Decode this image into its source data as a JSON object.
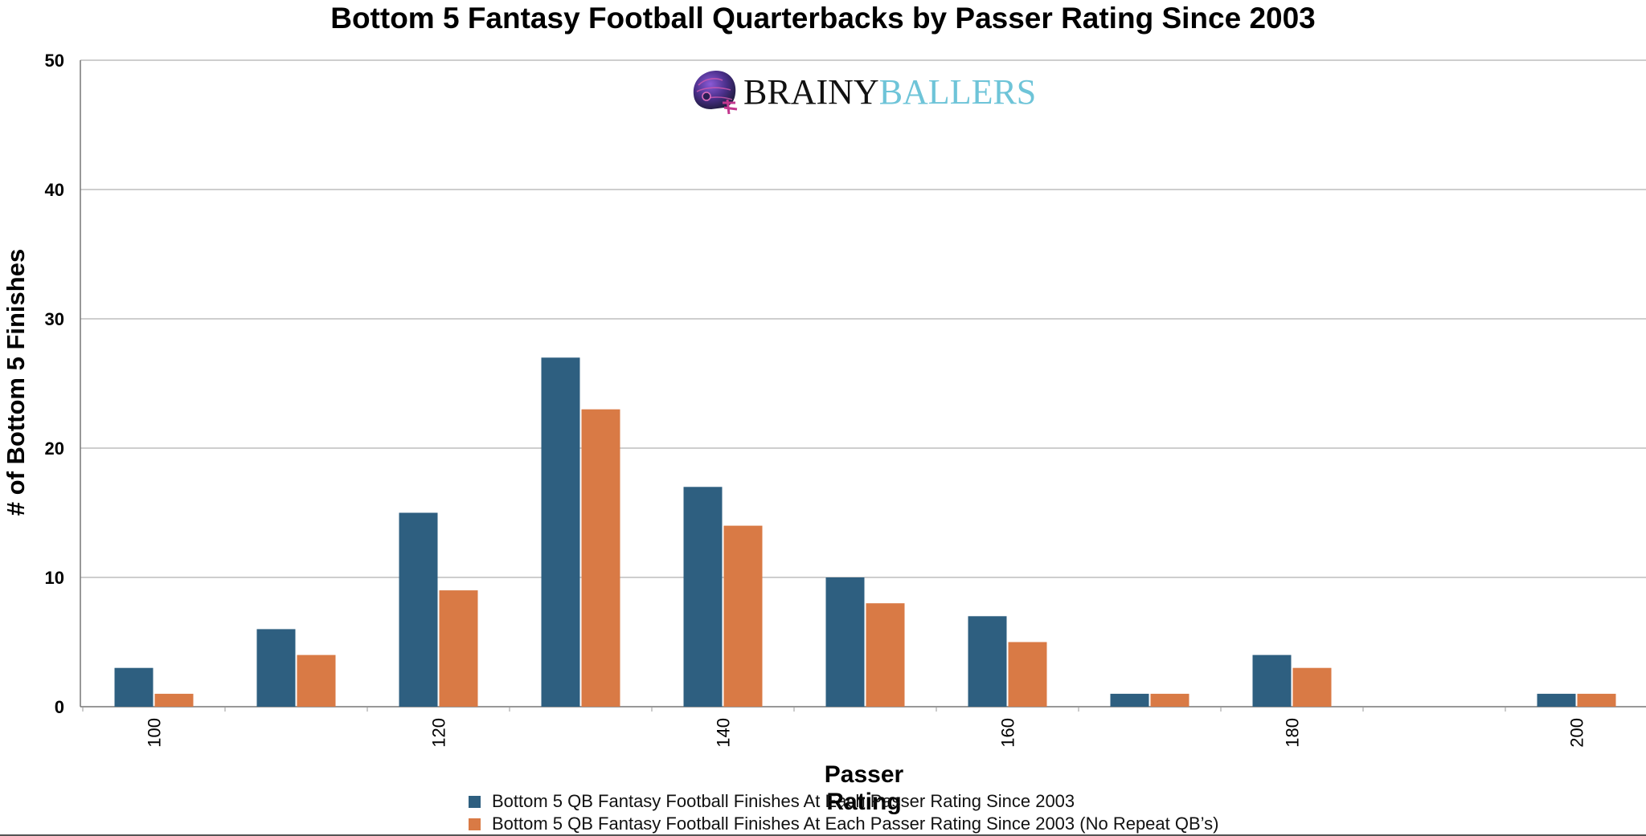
{
  "chart_data": {
    "type": "bar",
    "title": "Bottom 5 Fantasy Football Quarterbacks by Passer Rating Since 2003",
    "xlabel": "Passer Rating",
    "ylabel": "# of Bottom 5 Finishes",
    "x": [
      100,
      110,
      120,
      130,
      140,
      150,
      160,
      170,
      180,
      190,
      200
    ],
    "x_tick_labels": [
      "100",
      "120",
      "140",
      "160",
      "180",
      "200"
    ],
    "x_tick_values": [
      100,
      120,
      140,
      160,
      180,
      200
    ],
    "ylim": [
      0,
      50
    ],
    "y_ticks": [
      0,
      10,
      20,
      30,
      40,
      50
    ],
    "grid": true,
    "legend_position": "bottom",
    "series": [
      {
        "name": "Bottom 5 QB Fantasy Football Finishes At Each Passer Rating Since 2003",
        "color": "#2e5f80",
        "values": [
          3,
          6,
          15,
          27,
          17,
          10,
          7,
          1,
          4,
          0,
          1
        ]
      },
      {
        "name": "Bottom 5 QB Fantasy Football Finishes At Each Passer Rating Since 2003 (No Repeat QB’s)",
        "color": "#d97a45",
        "values": [
          1,
          4,
          9,
          23,
          14,
          8,
          5,
          1,
          3,
          0,
          1
        ]
      }
    ]
  },
  "logo": {
    "brainy": "BRAINY",
    "ballers": "BALLERS",
    "icon": "football-helmet-icon"
  }
}
